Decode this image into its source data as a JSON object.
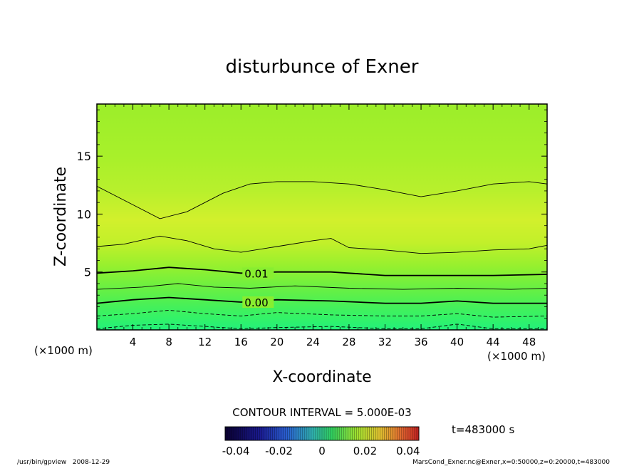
{
  "chart_data": {
    "type": "heatmap",
    "title": "disturbunce of Exner",
    "xlabel": "X-coordinate",
    "ylabel": "Z-coordinate",
    "x_unit": "(×1000 m)",
    "y_unit": "(×1000 m)",
    "xlim": [
      0,
      50
    ],
    "ylim": [
      0,
      19.5
    ],
    "x_ticks": [
      4,
      8,
      12,
      16,
      20,
      24,
      28,
      32,
      36,
      40,
      44,
      48
    ],
    "y_ticks": [
      5,
      10,
      15
    ],
    "contour_interval_text": "CONTOUR INTERVAL = 5.000E-03",
    "contour_labels": [
      {
        "text": "0.01",
        "x": 16.4,
        "y": 4.9
      },
      {
        "text": "0.00",
        "x": 16.4,
        "y": 2.4
      }
    ],
    "colorbar": {
      "min": -0.045,
      "max": 0.045,
      "tick_labels": [
        "-0.04",
        "-0.02",
        "0",
        "0.02",
        "0.04"
      ],
      "tick_values": [
        -0.04,
        -0.02,
        0,
        0.02,
        0.04
      ]
    },
    "time_label": "t=483000 s",
    "series": [
      {
        "name": "solid contour 1",
        "style": "solid",
        "x": [
          0,
          4,
          7,
          10,
          14,
          17,
          20,
          24,
          28,
          32,
          36,
          40,
          44,
          48,
          50
        ],
        "y": [
          12.4,
          10.8,
          9.6,
          10.2,
          11.8,
          12.6,
          12.8,
          12.8,
          12.6,
          12.1,
          11.5,
          12.0,
          12.6,
          12.8,
          12.6
        ]
      },
      {
        "name": "solid contour 2",
        "style": "solid",
        "x": [
          0,
          3,
          7,
          10,
          13,
          16,
          20,
          24,
          26,
          28,
          32,
          36,
          40,
          44,
          48,
          50
        ],
        "y": [
          7.2,
          7.4,
          8.1,
          7.7,
          7.0,
          6.7,
          7.2,
          7.7,
          7.9,
          7.1,
          6.9,
          6.6,
          6.7,
          6.9,
          7.0,
          7.3
        ]
      },
      {
        "name": "contour 0.01",
        "style": "solid-bold",
        "x": [
          0,
          4,
          8,
          12,
          16,
          20,
          26,
          32,
          38,
          44,
          50
        ],
        "y": [
          4.9,
          5.1,
          5.4,
          5.2,
          4.9,
          5.0,
          5.0,
          4.7,
          4.7,
          4.7,
          4.8
        ]
      },
      {
        "name": "solid contour 4",
        "style": "solid",
        "x": [
          0,
          5,
          9,
          13,
          17,
          22,
          28,
          34,
          40,
          46,
          50
        ],
        "y": [
          3.5,
          3.7,
          4.0,
          3.7,
          3.6,
          3.8,
          3.6,
          3.5,
          3.6,
          3.5,
          3.6
        ]
      },
      {
        "name": "contour 0.00",
        "style": "solid-bold",
        "x": [
          0,
          4,
          8,
          12,
          16,
          20,
          26,
          32,
          36,
          40,
          44,
          50
        ],
        "y": [
          2.3,
          2.6,
          2.8,
          2.6,
          2.4,
          2.6,
          2.5,
          2.3,
          2.3,
          2.5,
          2.3,
          2.3
        ]
      },
      {
        "name": "dashed contour 1",
        "style": "dashed",
        "x": [
          0,
          4,
          8,
          12,
          16,
          20,
          26,
          32,
          36,
          40,
          44,
          50
        ],
        "y": [
          1.2,
          1.4,
          1.7,
          1.4,
          1.2,
          1.5,
          1.3,
          1.2,
          1.2,
          1.4,
          1.1,
          1.2
        ]
      },
      {
        "name": "dashed contour 2",
        "style": "dashed",
        "x": [
          0,
          4,
          8,
          12,
          16,
          20,
          26,
          32,
          36,
          40,
          44,
          50
        ],
        "y": [
          0.1,
          0.4,
          0.5,
          0.3,
          0.1,
          0.2,
          0.3,
          0.1,
          0.1,
          0.5,
          0.1,
          0.1
        ]
      }
    ],
    "fill_bands": [
      {
        "y": 0.0,
        "color": "#22f07a"
      },
      {
        "y": 1.0,
        "color": "#33f268"
      },
      {
        "y": 2.0,
        "color": "#45f05a"
      },
      {
        "y": 3.0,
        "color": "#5cf04a"
      },
      {
        "y": 4.0,
        "color": "#72f03e"
      },
      {
        "y": 5.5,
        "color": "#96f02e"
      },
      {
        "y": 7.5,
        "color": "#c2f02a"
      },
      {
        "y": 9.5,
        "color": "#d2f02c"
      },
      {
        "y": 12.0,
        "color": "#b8f02c"
      },
      {
        "y": 15.0,
        "color": "#a8f02a"
      },
      {
        "y": 19.5,
        "color": "#9cee2a"
      }
    ]
  },
  "footer": {
    "left": "/usr/bin/gpview   2008-12-29",
    "right": "MarsCond_Exner.nc@Exner,x=0:50000,z=0:20000,t=483000"
  }
}
